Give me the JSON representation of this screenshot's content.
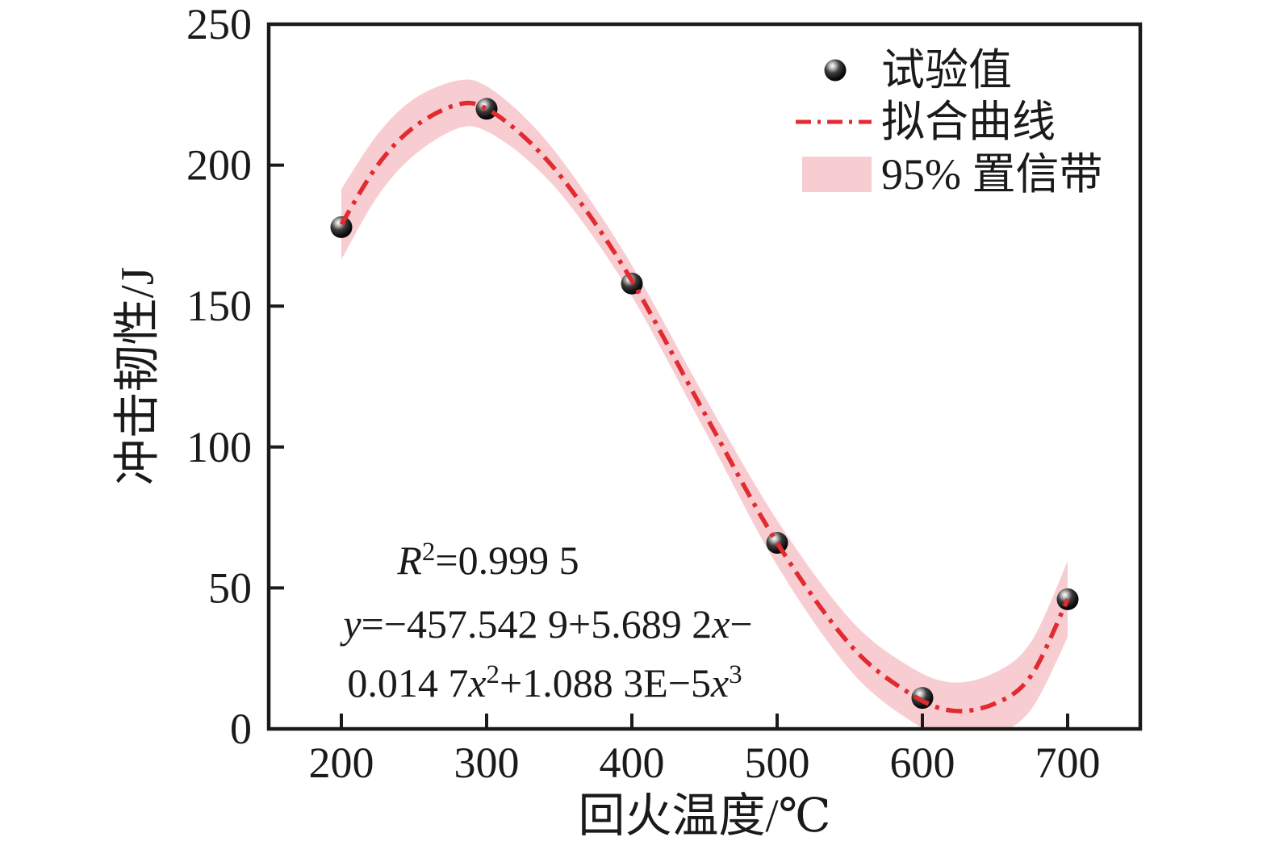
{
  "figure": {
    "background": "#ffffff",
    "ink_color": "#1a1a1a",
    "accent_red": "#e12b31",
    "band_pink": "#f8cdd1"
  },
  "chart_data": {
    "type": "scatter",
    "title": "",
    "xlabel": "回火温度/℃",
    "ylabel": "冲击韧性/J",
    "xlim": [
      150,
      750
    ],
    "ylim": [
      0,
      250
    ],
    "x_ticks": [
      "200",
      "300",
      "400",
      "500",
      "600",
      "700"
    ],
    "y_ticks": [
      "0",
      "50",
      "100",
      "150",
      "200",
      "250"
    ],
    "grid": false,
    "legend_position": "top-right inside",
    "series": [
      {
        "name": "试验值",
        "kind": "scatter",
        "marker": "black-sphere",
        "x": [
          200,
          300,
          400,
          500,
          600,
          700
        ],
        "y": [
          178,
          220,
          158,
          66,
          11,
          46
        ]
      },
      {
        "name": "拟合曲线",
        "kind": "fitted-curve",
        "style": "dash-dot",
        "color": "#e12b31",
        "x": [
          200,
          225,
          250,
          280,
          300,
          330,
          360,
          400,
          450,
          500,
          550,
          590,
          620,
          650,
          675,
          700
        ],
        "y": [
          179,
          200,
          213.5,
          221.5,
          220,
          208,
          190,
          159,
          112,
          66,
          30,
          13,
          6.5,
          9,
          19,
          46
        ]
      },
      {
        "name": "95% 置信带",
        "kind": "confidence-band",
        "color": "#f8cdd1",
        "x": [
          200,
          225,
          250,
          280,
          300,
          330,
          360,
          400,
          450,
          500,
          550,
          590,
          620,
          650,
          675,
          700
        ],
        "upper": [
          191.5,
          211,
          223.5,
          230,
          228,
          215,
          196,
          164.5,
          118,
          74,
          39,
          22.5,
          16.5,
          20,
          31,
          59.5
        ],
        "lower": [
          166.5,
          189,
          203.5,
          213,
          212,
          201,
          184,
          153.5,
          106,
          58,
          21,
          3.5,
          -3.5,
          -2,
          7,
          32.5
        ]
      }
    ],
    "annotation": {
      "r_squared_text": "R²=0.999 5",
      "equation_text": "y=−457.542 9+5.689 2x−0.014 7x²+1.088 3E−5x³"
    }
  },
  "legend": {
    "items": [
      {
        "label": "试验值",
        "marker": "black-sphere"
      },
      {
        "label": "拟合曲线",
        "marker": "red-dashdot-line"
      },
      {
        "label": "95% 置信带",
        "marker": "pink-band-swatch"
      }
    ]
  },
  "equation_lines": [
    [
      {
        "t": "R",
        "italic": true
      },
      {
        "t": "2",
        "sup": true
      },
      {
        "t": "=0.999 5"
      }
    ],
    [
      {
        "t": "y",
        "italic": true
      },
      {
        "t": "=−457.542 9+5.689 2"
      },
      {
        "t": "x",
        "italic": true
      },
      {
        "t": "−"
      }
    ],
    [
      {
        "t": "0.014 7"
      },
      {
        "t": "x",
        "italic": true
      },
      {
        "t": "2",
        "sup": true
      },
      {
        "t": "+1.088 3E−5"
      },
      {
        "t": "x",
        "italic": true
      },
      {
        "t": "3",
        "sup": true
      }
    ]
  ]
}
